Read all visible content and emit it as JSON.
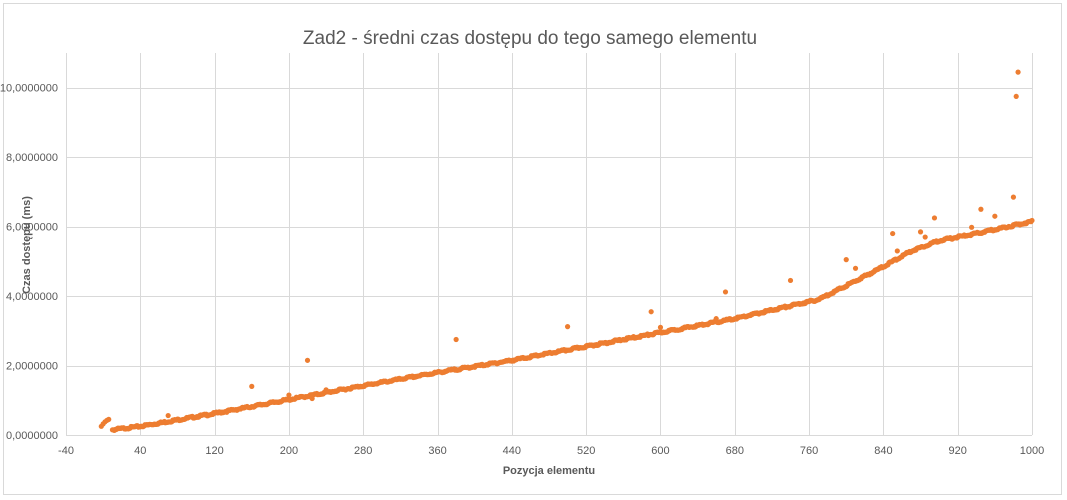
{
  "chart_data": {
    "type": "scatter",
    "title": "Zad2 - średni czas dostępu do tego samego elementu",
    "xlabel": "Pozycja elementu",
    "ylabel": "Czas dostępu (ms)",
    "xlim": [
      -40,
      1000
    ],
    "ylim": [
      0,
      11
    ],
    "x_ticks": [
      -40,
      40,
      120,
      200,
      280,
      360,
      440,
      520,
      600,
      680,
      760,
      840,
      920,
      1000
    ],
    "y_ticks": [
      0,
      2,
      4,
      6,
      8,
      10
    ],
    "x_tick_labels": [
      "-40",
      "40",
      "120",
      "200",
      "280",
      "360",
      "440",
      "520",
      "600",
      "680",
      "760",
      "840",
      "920",
      "1000"
    ],
    "y_tick_labels": [
      "0,0000000",
      "2,0000000",
      "4,0000000",
      "6,0000000",
      "8,0000000",
      "10,0000000"
    ],
    "grid": true,
    "color": "#ED7D31",
    "series": [
      {
        "values_trend": [
          [
            0,
            0.3
          ],
          [
            5,
            0.4
          ],
          [
            10,
            0.15
          ],
          [
            40,
            0.25
          ],
          [
            120,
            0.62
          ],
          [
            200,
            1.02
          ],
          [
            280,
            1.42
          ],
          [
            360,
            1.8
          ],
          [
            440,
            2.15
          ],
          [
            520,
            2.55
          ],
          [
            600,
            2.95
          ],
          [
            680,
            3.35
          ],
          [
            740,
            3.72
          ],
          [
            770,
            3.9
          ],
          [
            800,
            4.3
          ],
          [
            840,
            4.85
          ],
          [
            870,
            5.3
          ],
          [
            900,
            5.6
          ],
          [
            940,
            5.8
          ],
          [
            1000,
            6.15
          ]
        ],
        "outliers": [
          [
            -2,
            0.25
          ],
          [
            0,
            0.32
          ],
          [
            2,
            0.38
          ],
          [
            4,
            0.42
          ],
          [
            6,
            0.45
          ],
          [
            70,
            0.56
          ],
          [
            160,
            1.4
          ],
          [
            200,
            1.15
          ],
          [
            220,
            2.15
          ],
          [
            225,
            1.05
          ],
          [
            240,
            1.3
          ],
          [
            380,
            2.75
          ],
          [
            500,
            3.12
          ],
          [
            590,
            3.55
          ],
          [
            600,
            3.1
          ],
          [
            660,
            3.35
          ],
          [
            670,
            4.12
          ],
          [
            740,
            4.45
          ],
          [
            800,
            5.05
          ],
          [
            810,
            4.8
          ],
          [
            850,
            5.8
          ],
          [
            855,
            5.3
          ],
          [
            880,
            5.85
          ],
          [
            885,
            5.7
          ],
          [
            895,
            6.25
          ],
          [
            935,
            5.98
          ],
          [
            945,
            6.5
          ],
          [
            960,
            6.3
          ],
          [
            980,
            6.85
          ],
          [
            983,
            9.75
          ],
          [
            985,
            10.45
          ]
        ]
      }
    ]
  }
}
